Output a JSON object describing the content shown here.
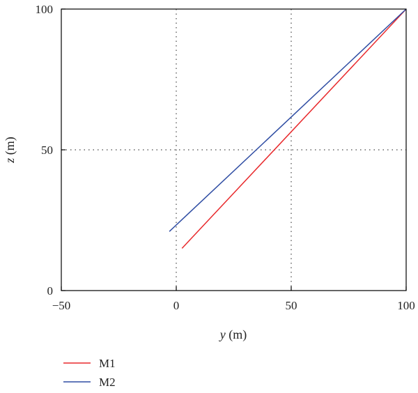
{
  "chart_data": {
    "type": "line",
    "title": "",
    "xlabel": {
      "var": "y",
      "unit": " (m)"
    },
    "ylabel": {
      "var": "z",
      "unit": " (m)"
    },
    "xlim": [
      -50,
      100
    ],
    "ylim": [
      0,
      100
    ],
    "xticks": [
      -50,
      0,
      50,
      100
    ],
    "xtick_labels": [
      "−50",
      "0",
      "50",
      "100"
    ],
    "yticks": [
      0,
      50,
      100
    ],
    "ytick_labels": [
      "0",
      "50",
      "100"
    ],
    "grid": {
      "style": "dotted",
      "x_at": [
        0,
        50
      ],
      "y_at": [
        50
      ]
    },
    "legend": "bottom-left",
    "series": [
      {
        "name": "M1",
        "color": "#e8282b",
        "x": [
          2.5,
          100
        ],
        "y": [
          15,
          100
        ]
      },
      {
        "name": "M2",
        "color": "#2f4da3",
        "x": [
          -3,
          100
        ],
        "y": [
          21,
          100
        ]
      }
    ]
  }
}
